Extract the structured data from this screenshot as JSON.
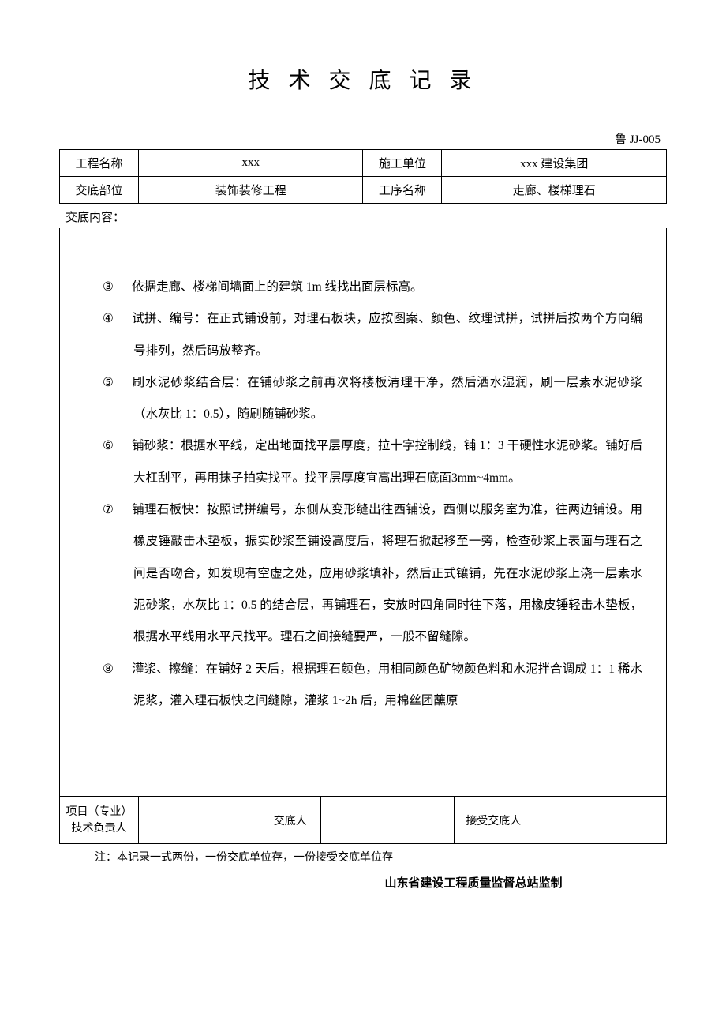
{
  "title": "技 术 交 底 记 录",
  "doc_id": "鲁 JJ-005",
  "header": {
    "labels": {
      "project_name": "工程名称",
      "construction_unit": "施工单位",
      "disclosure_part": "交底部位",
      "process_name": "工序名称"
    },
    "values": {
      "project_name": "xxx",
      "construction_unit": "xxx 建设集团",
      "disclosure_part": "装饰装修工程",
      "process_name": "走廊、楼梯理石"
    }
  },
  "content_label": "交底内容：",
  "items": [
    {
      "num": "③",
      "text": "依据走廊、楼梯间墙面上的建筑 1m 线找出面层标高。"
    },
    {
      "num": "④",
      "text": "试拼、编号：在正式铺设前，对理石板块，应按图案、颜色、纹理试拼，试拼后按两个方向编号排列，然后码放整齐。"
    },
    {
      "num": "⑤",
      "text": "刷水泥砂浆结合层：在铺砂浆之前再次将楼板清理干净，然后洒水湿润，刷一层素水泥砂浆（水灰比 1：0.5），随刷随铺砂浆。"
    },
    {
      "num": "⑥",
      "text": "铺砂浆：根据水平线，定出地面找平层厚度，拉十字控制线，铺 1：3 干硬性水泥砂浆。铺好后大杠刮平，再用抹子拍实找平。找平层厚度宜高出理石底面3mm~4mm。"
    },
    {
      "num": "⑦",
      "text": "铺理石板快：按照试拼编号，东侧从变形缝出往西铺设，西侧以服务室为准，往两边铺设。用橡皮锤敲击木垫板，振实砂浆至铺设高度后，将理石掀起移至一旁，检查砂浆上表面与理石之间是否吻合，如发现有空虚之处，应用砂浆填补，然后正式镶铺，先在水泥砂浆上浇一层素水泥砂浆，水灰比 1：0.5 的结合层，再铺理石，安放时四角同时往下落，用橡皮锤轻击木垫板，根据水平线用水平尺找平。理石之间接缝要严，一般不留缝隙。"
    },
    {
      "num": "⑧",
      "text": "灌浆、擦缝：在铺好 2 天后，根据理石颜色，用相同颜色矿物颜色料和水泥拌合调成 1：1 稀水泥浆，灌入理石板快之间缝隙，灌浆 1~2h 后，用棉丝团蘸原"
    }
  ],
  "sign": {
    "project_leader": "项目（专业）技术负责人",
    "disclosure_person": "交底人",
    "receiver": "接受交底人"
  },
  "note": "注：本记录一式两份，一份交底单位存，一份接受交底单位存",
  "footer": "山东省建设工程质量监督总站监制"
}
